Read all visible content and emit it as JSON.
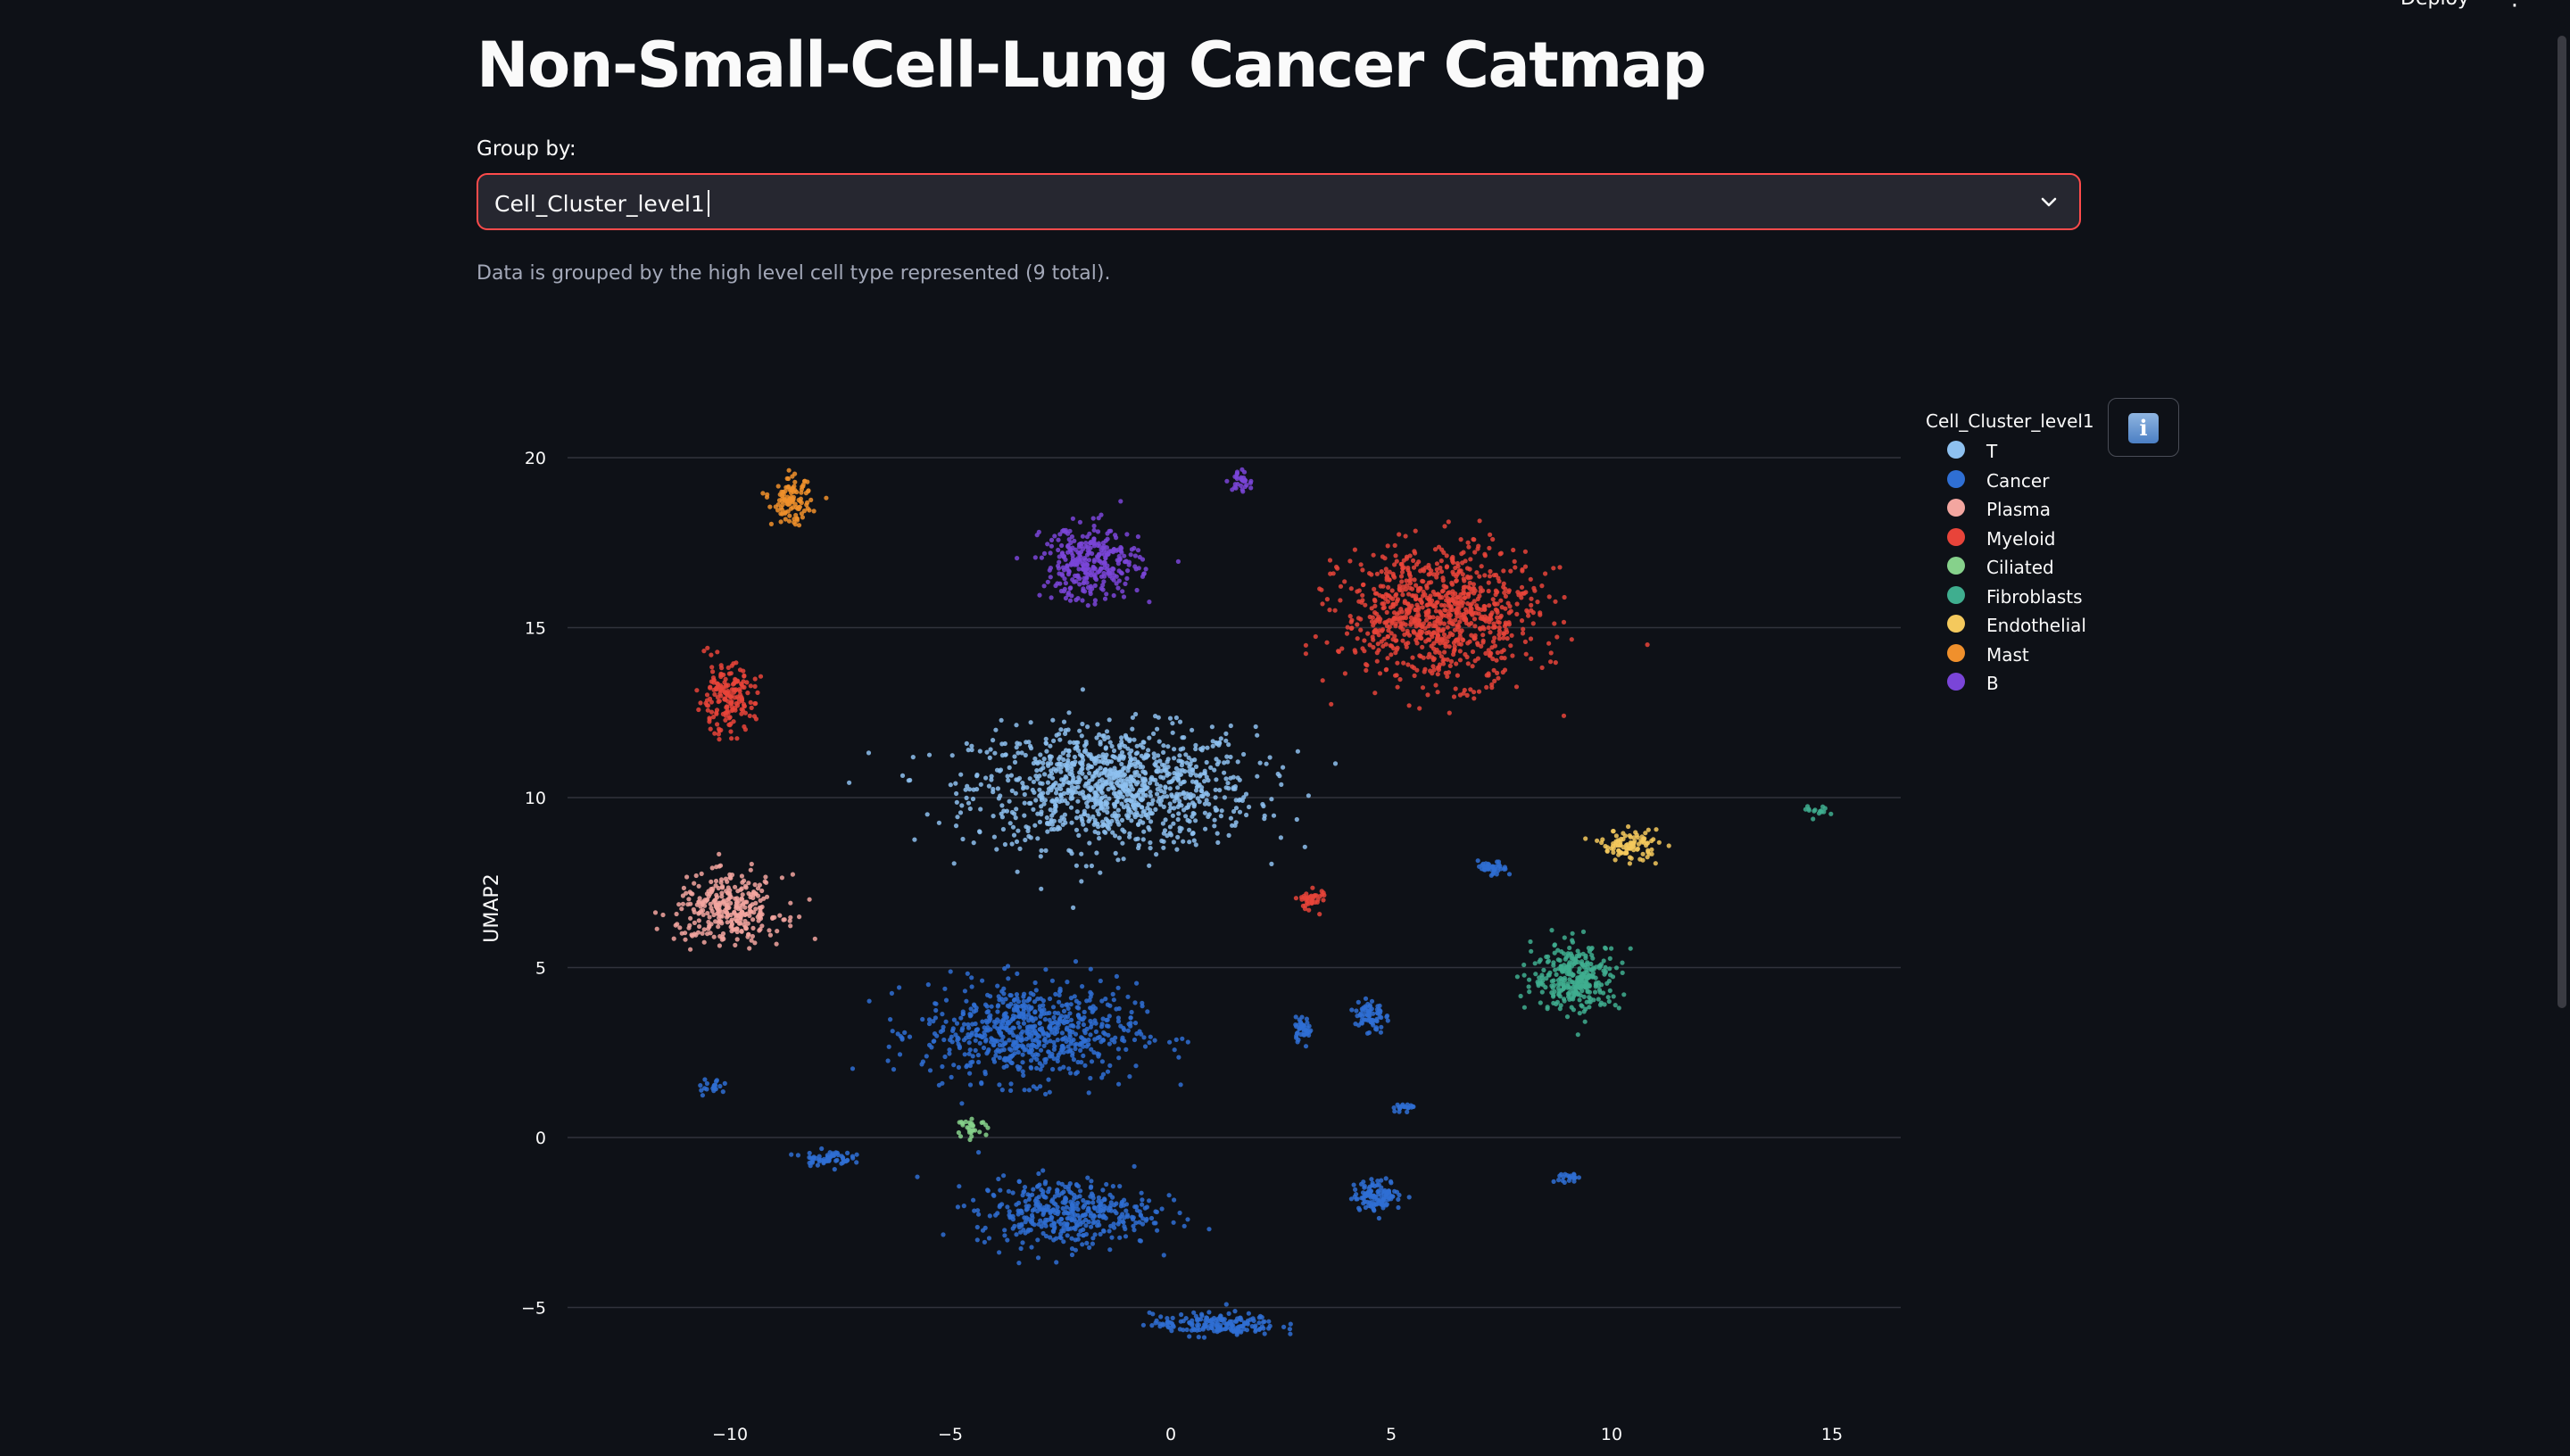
{
  "header": {
    "deploy_label": "Deploy",
    "menu_icon": "⋮"
  },
  "page": {
    "title": "Non-Small-Cell-Lung Cancer Catmap",
    "select_label": "Group by:",
    "select_value": "Cell_Cluster_level1",
    "caption": "Data is grouped by the high level cell type represented (9 total).",
    "info_icon": "i"
  },
  "chart_data": {
    "type": "scatter",
    "ylabel": "UMAP2",
    "xlabel": "",
    "x_ticks": [
      "−10",
      "−5",
      "0",
      "5",
      "10",
      "15"
    ],
    "x_tick_values": [
      -10,
      -5,
      0,
      5,
      10,
      15
    ],
    "y_ticks": [
      "−5",
      "0",
      "5",
      "10",
      "15",
      "20"
    ],
    "y_tick_values": [
      -5,
      0,
      5,
      10,
      15,
      20
    ],
    "xlim": [
      -12.5,
      16.5
    ],
    "ylim": [
      -6.5,
      21
    ],
    "grid": true,
    "legend_position": "top-right",
    "legend": {
      "title": "Cell_Cluster_level1",
      "items": [
        {
          "label": "T",
          "color": "#8ec1f0"
        },
        {
          "label": "Cancer",
          "color": "#2f6fd4"
        },
        {
          "label": "Plasma",
          "color": "#f3a6a0"
        },
        {
          "label": "Myeloid",
          "color": "#e8443a"
        },
        {
          "label": "Ciliated",
          "color": "#86d18b"
        },
        {
          "label": "Fibroblasts",
          "color": "#3fae8f"
        },
        {
          "label": "Endothelial",
          "color": "#f4c95d"
        },
        {
          "label": "Mast",
          "color": "#f0902c"
        },
        {
          "label": "B",
          "color": "#7a45d8"
        }
      ]
    },
    "clusters": [
      {
        "label": "T",
        "cx": -1.3,
        "cy": 10.3,
        "sx": 2.9,
        "sy": 1.6,
        "n": 1100
      },
      {
        "label": "Cancer",
        "cx": -3.2,
        "cy": 3.1,
        "sx": 2.2,
        "sy": 1.3,
        "n": 700
      },
      {
        "label": "Cancer",
        "cx": -2.4,
        "cy": -2.2,
        "sx": 1.8,
        "sy": 0.9,
        "n": 420
      },
      {
        "label": "Cancer",
        "cx": 1.0,
        "cy": -5.5,
        "sx": 1.3,
        "sy": 0.3,
        "n": 180
      },
      {
        "label": "Cancer",
        "cx": 4.7,
        "cy": -1.7,
        "sx": 0.5,
        "sy": 0.4,
        "n": 120
      },
      {
        "label": "Cancer",
        "cx": -7.8,
        "cy": -0.6,
        "sx": 0.5,
        "sy": 0.2,
        "n": 60
      },
      {
        "label": "Cancer",
        "cx": 4.5,
        "cy": 3.6,
        "sx": 0.3,
        "sy": 0.5,
        "n": 70
      },
      {
        "label": "Cancer",
        "cx": 3.0,
        "cy": 3.2,
        "sx": 0.2,
        "sy": 0.3,
        "n": 40
      },
      {
        "label": "Cancer",
        "cx": 7.3,
        "cy": 7.9,
        "sx": 0.3,
        "sy": 0.2,
        "n": 40
      },
      {
        "label": "Cancer",
        "cx": 9.0,
        "cy": -1.2,
        "sx": 0.2,
        "sy": 0.2,
        "n": 20
      },
      {
        "label": "Cancer",
        "cx": -10.4,
        "cy": 1.5,
        "sx": 0.3,
        "sy": 0.2,
        "n": 20
      },
      {
        "label": "Cancer",
        "cx": 5.3,
        "cy": 0.9,
        "sx": 0.3,
        "sy": 0.1,
        "n": 20
      },
      {
        "label": "Plasma",
        "cx": -10.0,
        "cy": 6.7,
        "sx": 1.1,
        "sy": 0.9,
        "n": 320
      },
      {
        "label": "Myeloid",
        "cx": 6.1,
        "cy": 15.4,
        "sx": 2.0,
        "sy": 1.8,
        "n": 900
      },
      {
        "label": "Myeloid",
        "cx": -10.1,
        "cy": 12.9,
        "sx": 0.6,
        "sy": 0.9,
        "n": 180
      },
      {
        "label": "Myeloid",
        "cx": 3.2,
        "cy": 7.0,
        "sx": 0.3,
        "sy": 0.3,
        "n": 40
      },
      {
        "label": "Ciliated",
        "cx": -4.5,
        "cy": 0.3,
        "sx": 0.3,
        "sy": 0.2,
        "n": 30
      },
      {
        "label": "Fibroblasts",
        "cx": 9.2,
        "cy": 4.7,
        "sx": 0.9,
        "sy": 0.9,
        "n": 320
      },
      {
        "label": "Fibroblasts",
        "cx": 14.7,
        "cy": 9.6,
        "sx": 0.3,
        "sy": 0.15,
        "n": 15
      },
      {
        "label": "Endothelial",
        "cx": 10.4,
        "cy": 8.6,
        "sx": 0.6,
        "sy": 0.4,
        "n": 100
      },
      {
        "label": "Mast",
        "cx": -8.6,
        "cy": 18.7,
        "sx": 0.4,
        "sy": 0.6,
        "n": 110
      },
      {
        "label": "B",
        "cx": -1.8,
        "cy": 16.9,
        "sx": 1.0,
        "sy": 1.0,
        "n": 320
      },
      {
        "label": "B",
        "cx": 1.6,
        "cy": 19.3,
        "sx": 0.3,
        "sy": 0.3,
        "n": 30
      }
    ]
  }
}
